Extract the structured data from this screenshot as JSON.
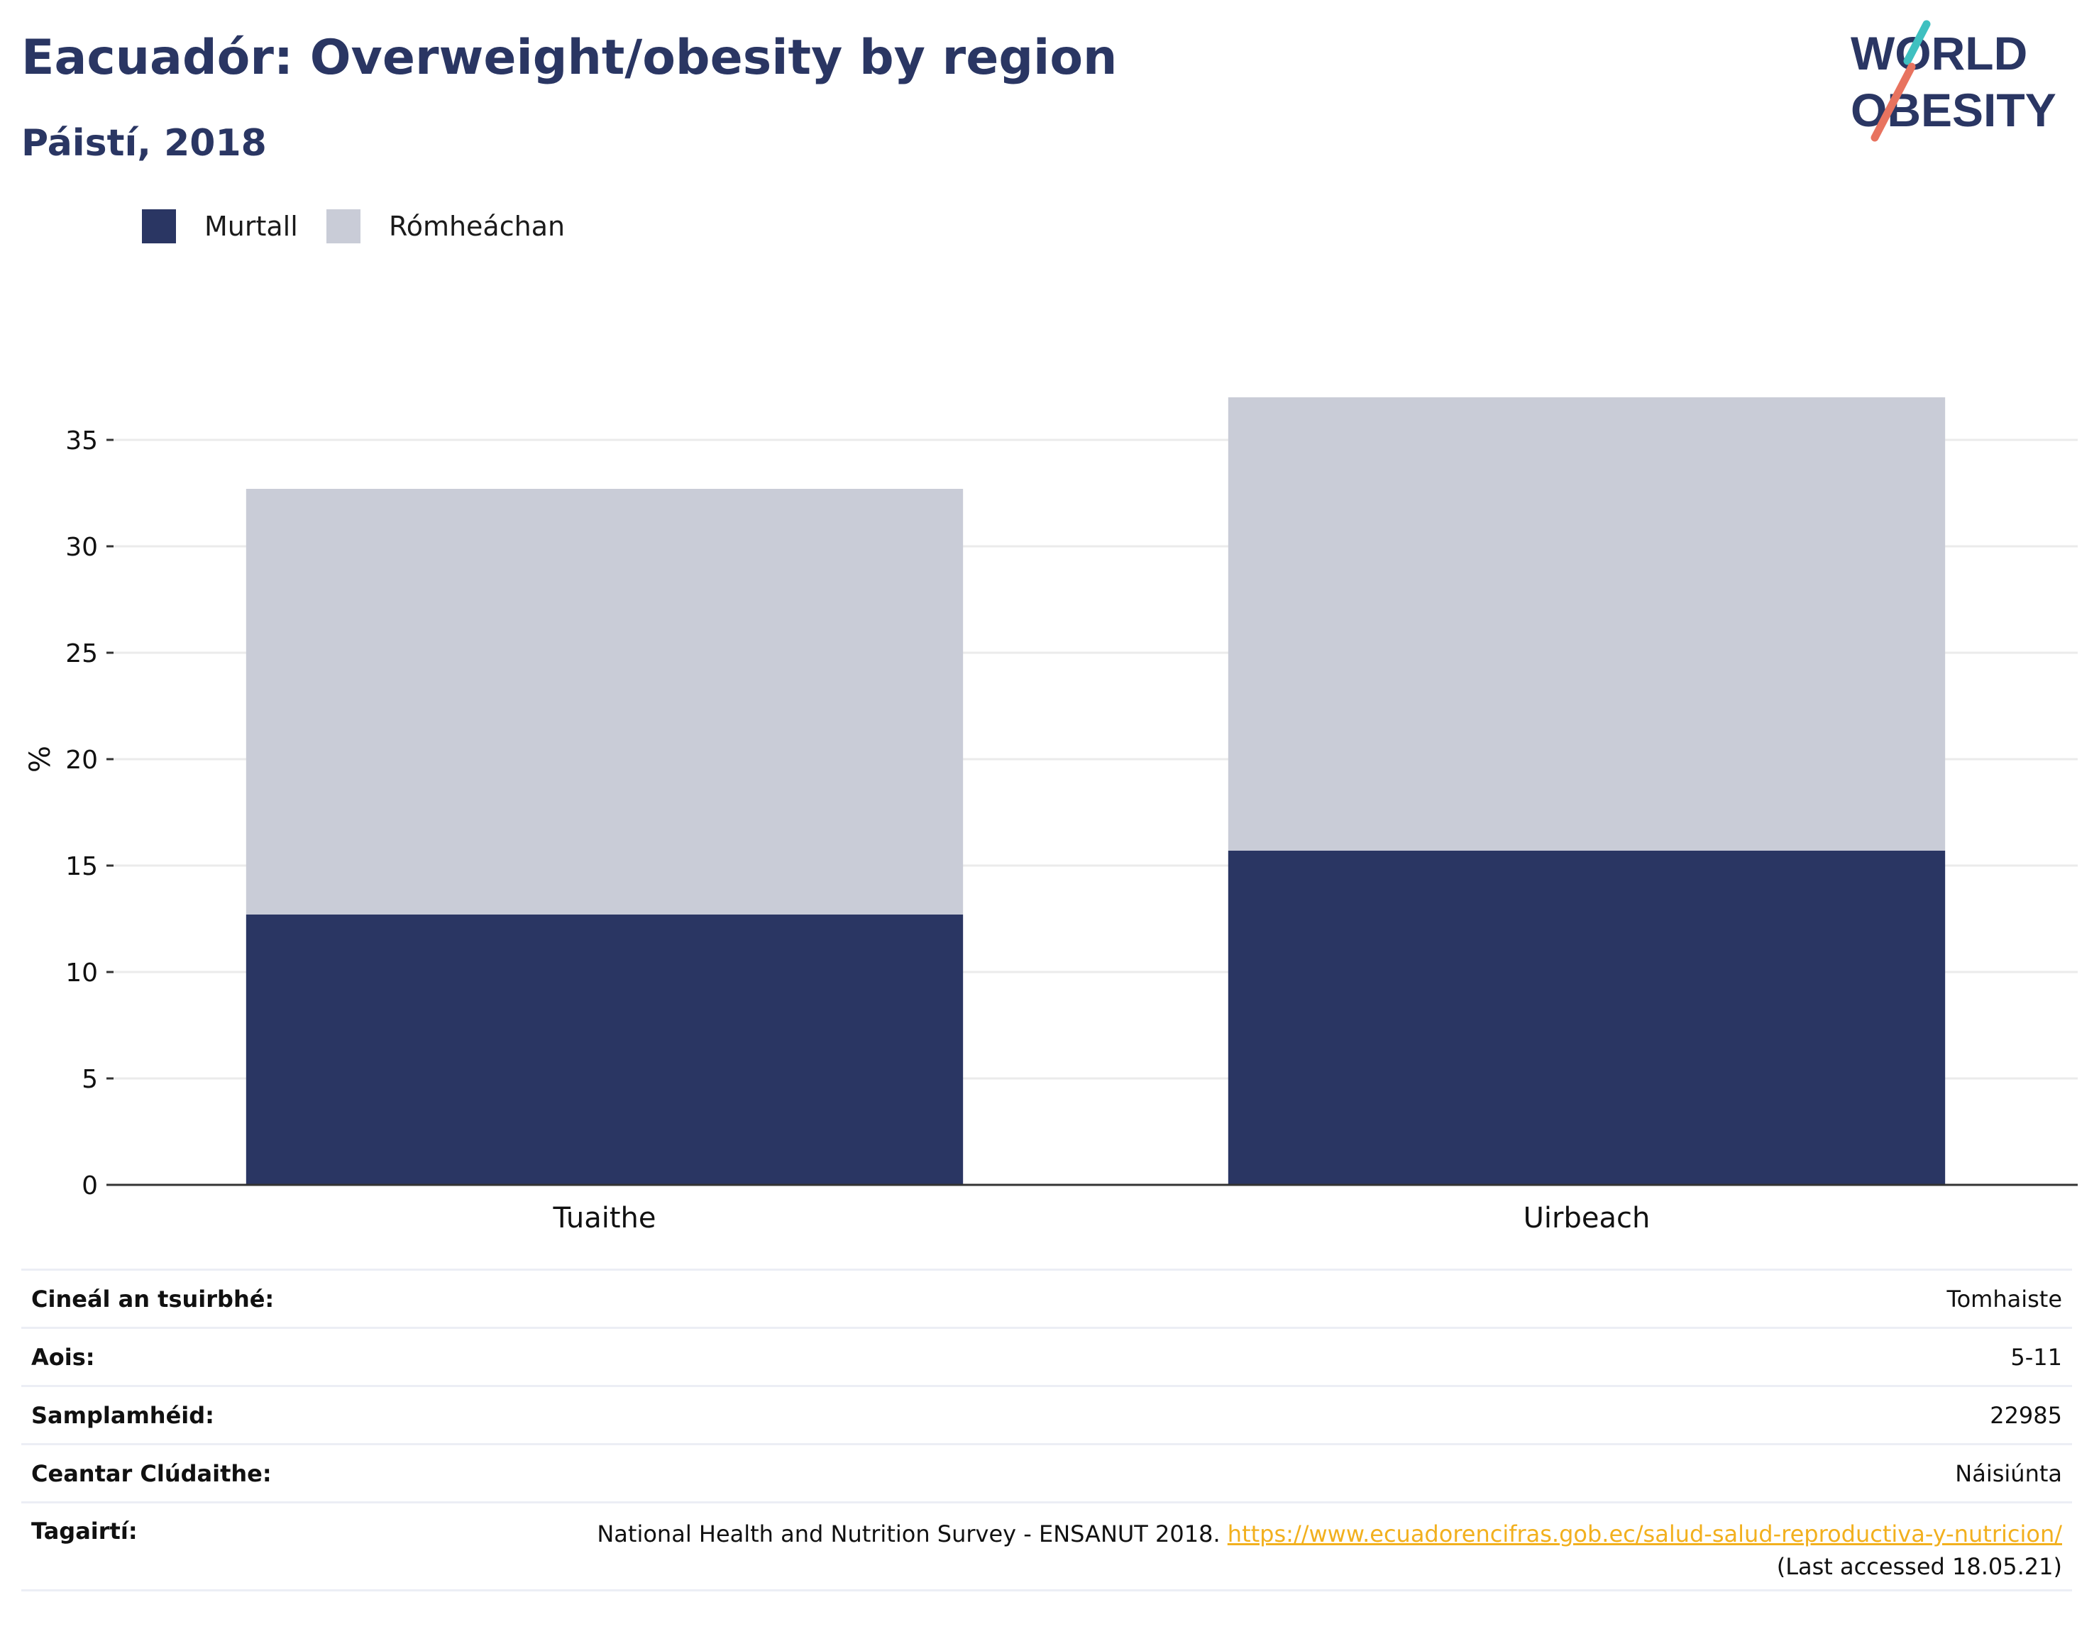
{
  "header": {
    "title": "Eacuadór: Overweight/obesity by region",
    "subtitle": "Páistí, 2018"
  },
  "logo": {
    "line1": "WORLD",
    "line2": "OBESITY"
  },
  "colors": {
    "obese": "#2a3663",
    "overweight": "#c9ccd7",
    "brand_teal": "#3fc0c0",
    "brand_coral": "#e8735f",
    "link": "#f2b01e"
  },
  "chart_data": {
    "type": "bar",
    "stacked": true,
    "categories": [
      "Tuaithe",
      "Uirbeach"
    ],
    "series": [
      {
        "name": "Murtall",
        "values": [
          12.7,
          15.7
        ]
      },
      {
        "name": "Rómheáchan",
        "values": [
          20.0,
          21.3
        ]
      }
    ],
    "ylabel": "%",
    "xlabel": "",
    "ylim": [
      0,
      37
    ],
    "yticks": [
      0,
      5,
      10,
      15,
      20,
      25,
      30,
      35
    ],
    "grid": true,
    "legend": "top-left"
  },
  "info": {
    "survey_type_label": "Cineál an tsuirbhé:",
    "survey_type_value": "Tomhaiste",
    "age_label": "Aois:",
    "age_value": "5-11",
    "sample_label": "Samplamhéid:",
    "sample_value": "22985",
    "area_label": "Ceantar Clúdaithe:",
    "area_value": "Náisiúnta",
    "ref_label": "Tagairtí:",
    "ref_text": "National Health and Nutrition Survey - ENSANUT 2018.",
    "ref_link": "https://www.ecuadorencifras.gob.ec/salud-salud-reproductiva-y-nutricion/",
    "ref_accessed": "(Last accessed 18.05.21)"
  }
}
